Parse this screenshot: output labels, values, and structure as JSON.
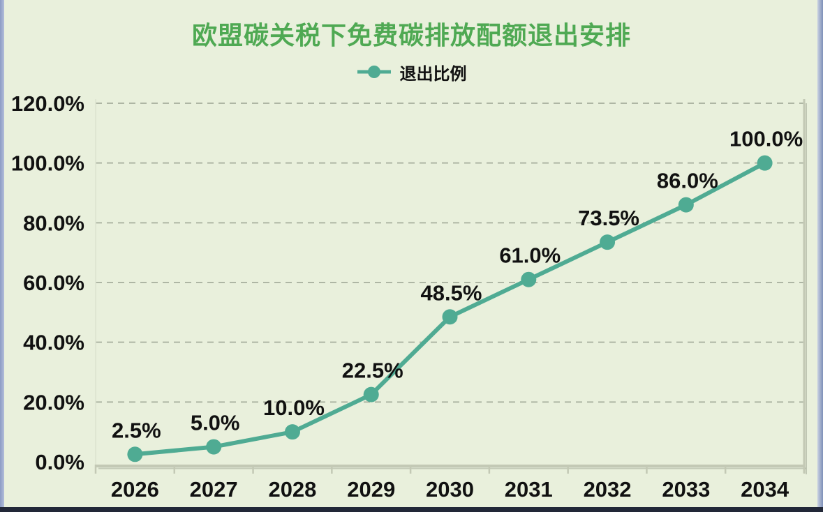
{
  "chart_data": {
    "type": "line",
    "title": "欧盟碳关税下免费碳排放配额退出安排",
    "categories": [
      "2026",
      "2027",
      "2028",
      "2029",
      "2030",
      "2031",
      "2032",
      "2033",
      "2034"
    ],
    "series": [
      {
        "name": "退出比例",
        "values": [
          2.5,
          5.0,
          10.0,
          22.5,
          48.5,
          61.0,
          73.5,
          86.0,
          100.0
        ],
        "labels": [
          "2.5%",
          "5.0%",
          "10.0%",
          "22.5%",
          "48.5%",
          "61.0%",
          "73.5%",
          "86.0%",
          "100.0%"
        ]
      }
    ],
    "y_ticks": [
      {
        "value": 0,
        "label": "0.0%"
      },
      {
        "value": 20,
        "label": "20.0%"
      },
      {
        "value": 40,
        "label": "40.0%"
      },
      {
        "value": 60,
        "label": "60.0%"
      },
      {
        "value": 80,
        "label": "80.0%"
      },
      {
        "value": 100,
        "label": "100.0%"
      },
      {
        "value": 120,
        "label": "120.0%"
      }
    ],
    "ylim": [
      0,
      120
    ],
    "xlabel": "",
    "ylabel": "",
    "grid": "horizontal-dashed",
    "legend_position": "top-center",
    "marker": "circle"
  },
  "colors": {
    "background": "#e9f0dc",
    "title": "#4fa953",
    "line": "#4fab93",
    "axis_text": "#111111",
    "data_label": "#111111",
    "gridline": "#aeb6a4",
    "axis_line": "#c3c9b5",
    "axis_shadow": "#a6ac9a",
    "frame_left": "#8c9cc4",
    "frame_right": "#7e90b8",
    "frame_bottom": "#222838"
  }
}
